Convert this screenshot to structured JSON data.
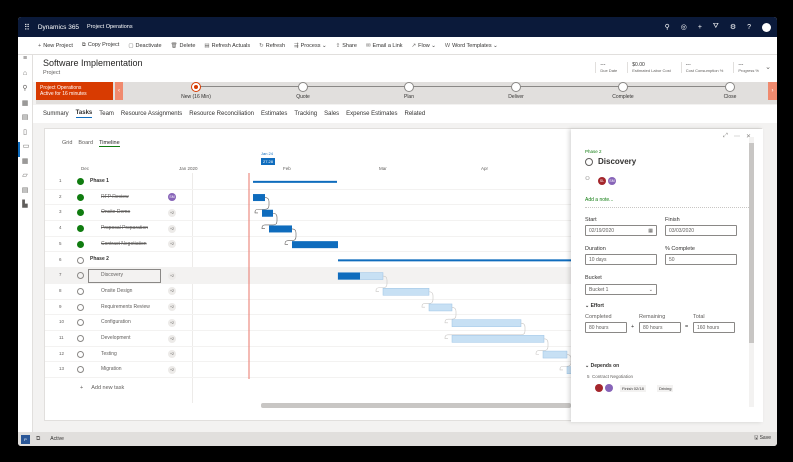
{
  "app": {
    "brand": "Dynamics 365",
    "area": "Project Operations",
    "icons": [
      "search-icon",
      "target-icon",
      "plus-icon",
      "filter-icon",
      "gear-icon",
      "help-icon",
      "avatar"
    ]
  },
  "toolbar": [
    {
      "icon": "+",
      "label": "New Project"
    },
    {
      "icon": "⧉",
      "label": "Copy Project"
    },
    {
      "icon": "▢",
      "label": "Deactivate"
    },
    {
      "icon": "🗑",
      "label": "Delete"
    },
    {
      "icon": "▤",
      "label": "Refresh Actuals"
    },
    {
      "icon": "↻",
      "label": "Refresh"
    },
    {
      "icon": "⇶",
      "label": "Process ⌄"
    },
    {
      "icon": "⇪",
      "label": "Share"
    },
    {
      "icon": "✉",
      "label": "Email a Link"
    },
    {
      "icon": "↗",
      "label": "Flow ⌄"
    },
    {
      "icon": "W",
      "label": "Word Templates ⌄"
    }
  ],
  "header": {
    "title": "Software Implementation",
    "subtitle": "Project",
    "fields": [
      {
        "value": "---",
        "label": "Due Date"
      },
      {
        "value": "$0.00",
        "label": "Estimated Labor Cost"
      },
      {
        "value": "---",
        "label": "Cost Consumption %"
      },
      {
        "value": "---",
        "label": "Progress %"
      }
    ]
  },
  "bpf": {
    "name": "Project Operations",
    "active": "Active for 16 minutes",
    "stages": [
      "New  (16 Min)",
      "Quote",
      "Plan",
      "Deliver",
      "Complete",
      "Close"
    ],
    "accent": "#d83b01"
  },
  "tabs": [
    "Summary",
    "Tasks",
    "Team",
    "Resource Assignments",
    "Resource Reconciliation",
    "Estimates",
    "Tracking",
    "Sales",
    "Expense Estimates",
    "Related"
  ],
  "views": [
    "Grid",
    "Board",
    "Timeline"
  ],
  "timeline": {
    "months": [
      "Dec",
      "Jan 2020",
      "Feb",
      "Mar",
      "Apr"
    ],
    "today_label": "Jan 24",
    "today_badge": "27.28"
  },
  "tasks": [
    {
      "n": "1",
      "name": "Phase 1",
      "phase": true,
      "done": true
    },
    {
      "n": "2",
      "name": "RFP Review",
      "done": true,
      "badge": "SM"
    },
    {
      "n": "3",
      "name": "Onsite Demo",
      "done": true,
      "badge": "+2"
    },
    {
      "n": "4",
      "name": "Proposal Preparation",
      "done": true,
      "badge": "+2"
    },
    {
      "n": "5",
      "name": "Contract Negotiation",
      "done": true,
      "badge": "+2"
    },
    {
      "n": "6",
      "name": "Phase 2",
      "phase": true,
      "done": false
    },
    {
      "n": "7",
      "name": "Discovery",
      "done": false,
      "badge": "+2",
      "selected": true
    },
    {
      "n": "8",
      "name": "Onsite Design",
      "done": false,
      "badge": "+2"
    },
    {
      "n": "9",
      "name": "Requirements Review",
      "done": false,
      "badge": "+2"
    },
    {
      "n": "10",
      "name": "Configuration",
      "done": false,
      "badge": "+2"
    },
    {
      "n": "11",
      "name": "Development",
      "done": false,
      "badge": "+2"
    },
    {
      "n": "12",
      "name": "Testing",
      "done": false,
      "badge": "+2"
    },
    {
      "n": "13",
      "name": "Migration",
      "done": false,
      "badge": "+2"
    }
  ],
  "add_task": "Add new task",
  "panel": {
    "phase": "Phase 2",
    "title": "Discovery",
    "assignees": [
      "SL",
      "SM"
    ],
    "add_note": "Add a note...",
    "start_label": "Start",
    "start": "02/19/2020",
    "finish_label": "Finish",
    "finish": "03/03/2020",
    "duration_label": "Duration",
    "duration": "10 days",
    "complete_label": "% Complete",
    "complete": "50",
    "bucket_label": "Bucket",
    "bucket": "Bucket 1",
    "effort_label": "Effort",
    "completed_label": "Completed",
    "completed": "80 hours",
    "remaining_label": "Remaining",
    "remaining": "80 hours",
    "total_label": "Total",
    "total": "160 hours",
    "depends_label": "Depends on",
    "dep_n": "5",
    "dep_name": "Contract Negotiation",
    "dep_finish": "Finish 02/18",
    "dep_tag": "Driving"
  },
  "status": {
    "state": "Active",
    "save": "Save"
  }
}
